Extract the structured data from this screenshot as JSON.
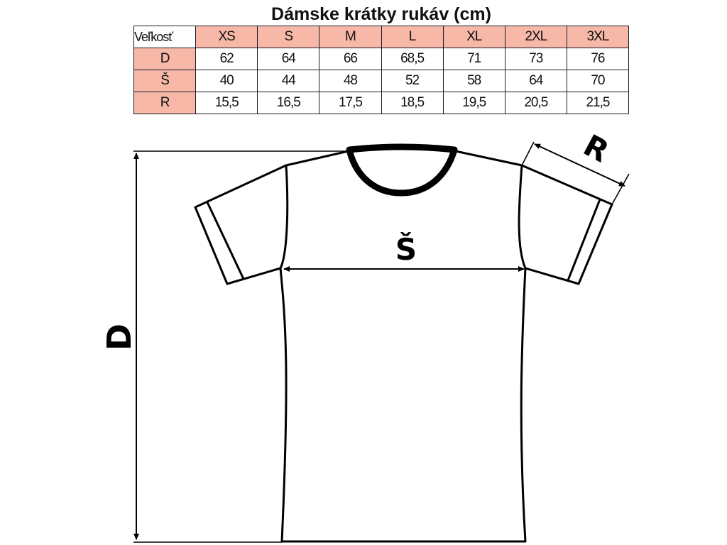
{
  "table": {
    "title": "Dámske krátky rukáv (cm)",
    "header_label": "Veľkosť",
    "sizes": [
      "XS",
      "S",
      "M",
      "L",
      "XL",
      "2XL",
      "3XL"
    ],
    "rows": [
      {
        "label": "D",
        "values": [
          "62",
          "64",
          "66",
          "68,5",
          "71",
          "73",
          "76"
        ]
      },
      {
        "label": "Š",
        "values": [
          "40",
          "44",
          "48",
          "52",
          "58",
          "64",
          "70"
        ]
      },
      {
        "label": "R",
        "values": [
          "15,5",
          "16,5",
          "17,5",
          "18,5",
          "19,5",
          "20,5",
          "21,5"
        ]
      }
    ],
    "highlight_color": "#f7b8a8"
  },
  "diagram": {
    "length_label": "D",
    "width_label": "Š",
    "sleeve_label": "R"
  }
}
